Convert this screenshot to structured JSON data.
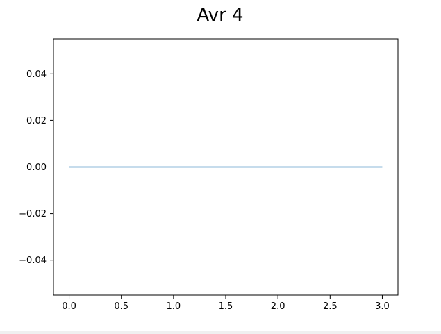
{
  "chart_data": {
    "type": "line",
    "title": "Avr 4",
    "xlabel": "",
    "ylabel": "",
    "xlim": [
      -0.15,
      3.15
    ],
    "ylim": [
      -0.055,
      0.055
    ],
    "xticks": [
      0.0,
      0.5,
      1.0,
      1.5,
      2.0,
      2.5,
      3.0
    ],
    "xtick_labels": [
      "0.0",
      "0.5",
      "1.0",
      "1.5",
      "2.0",
      "2.5",
      "3.0"
    ],
    "yticks": [
      0.04,
      0.02,
      0.0,
      -0.02,
      -0.04
    ],
    "ytick_labels": [
      "0.04",
      "0.02",
      "0.00",
      "−0.02",
      "−0.04"
    ],
    "grid": false,
    "series": [
      {
        "x": [
          0,
          1,
          2,
          3
        ],
        "y": [
          0,
          0,
          0,
          0
        ],
        "color": "#1f77b4"
      }
    ]
  }
}
